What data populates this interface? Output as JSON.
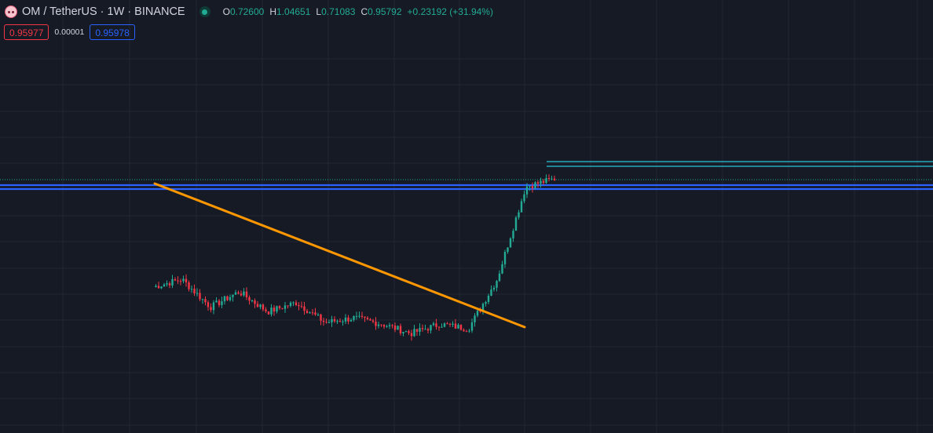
{
  "header": {
    "symbol_icon": "om-token-logo-icon",
    "title": "OM / TetherUS · 1W · BINANCE",
    "status_icon": "market-open-dot-icon",
    "ohlc": [
      {
        "key": "O",
        "value": "0.72600"
      },
      {
        "key": "H",
        "value": "1.04651"
      },
      {
        "key": "L",
        "value": "0.71083"
      },
      {
        "key": "C",
        "value": "0.95792"
      }
    ],
    "change": "+0.23192 (+31.94%)"
  },
  "trading": {
    "sell_price": "0.95977",
    "spread": "0.00001",
    "buy_price": "0.95978"
  },
  "colors": {
    "background": "#161a25",
    "grid": "#232734",
    "up_candle": "#22ab94",
    "down_candle": "#f23645",
    "trendline": "#ff9800",
    "horizontal_level": "#2962ff",
    "upper_lines": "#26c6da",
    "text": "#d1d4dc"
  },
  "chart_data": {
    "type": "candlestick",
    "interval": "1W",
    "shape": [
      0.3,
      0.35,
      0.17,
      0.27,
      0.14,
      0.2,
      0.07,
      0.1,
      0.06,
      0.0,
      0.06,
      0.03,
      0.35,
      0.95,
      1.0
    ],
    "drawings": [
      "descending-trendline",
      "horizontal-level",
      "upper-horizontal-lines"
    ]
  }
}
